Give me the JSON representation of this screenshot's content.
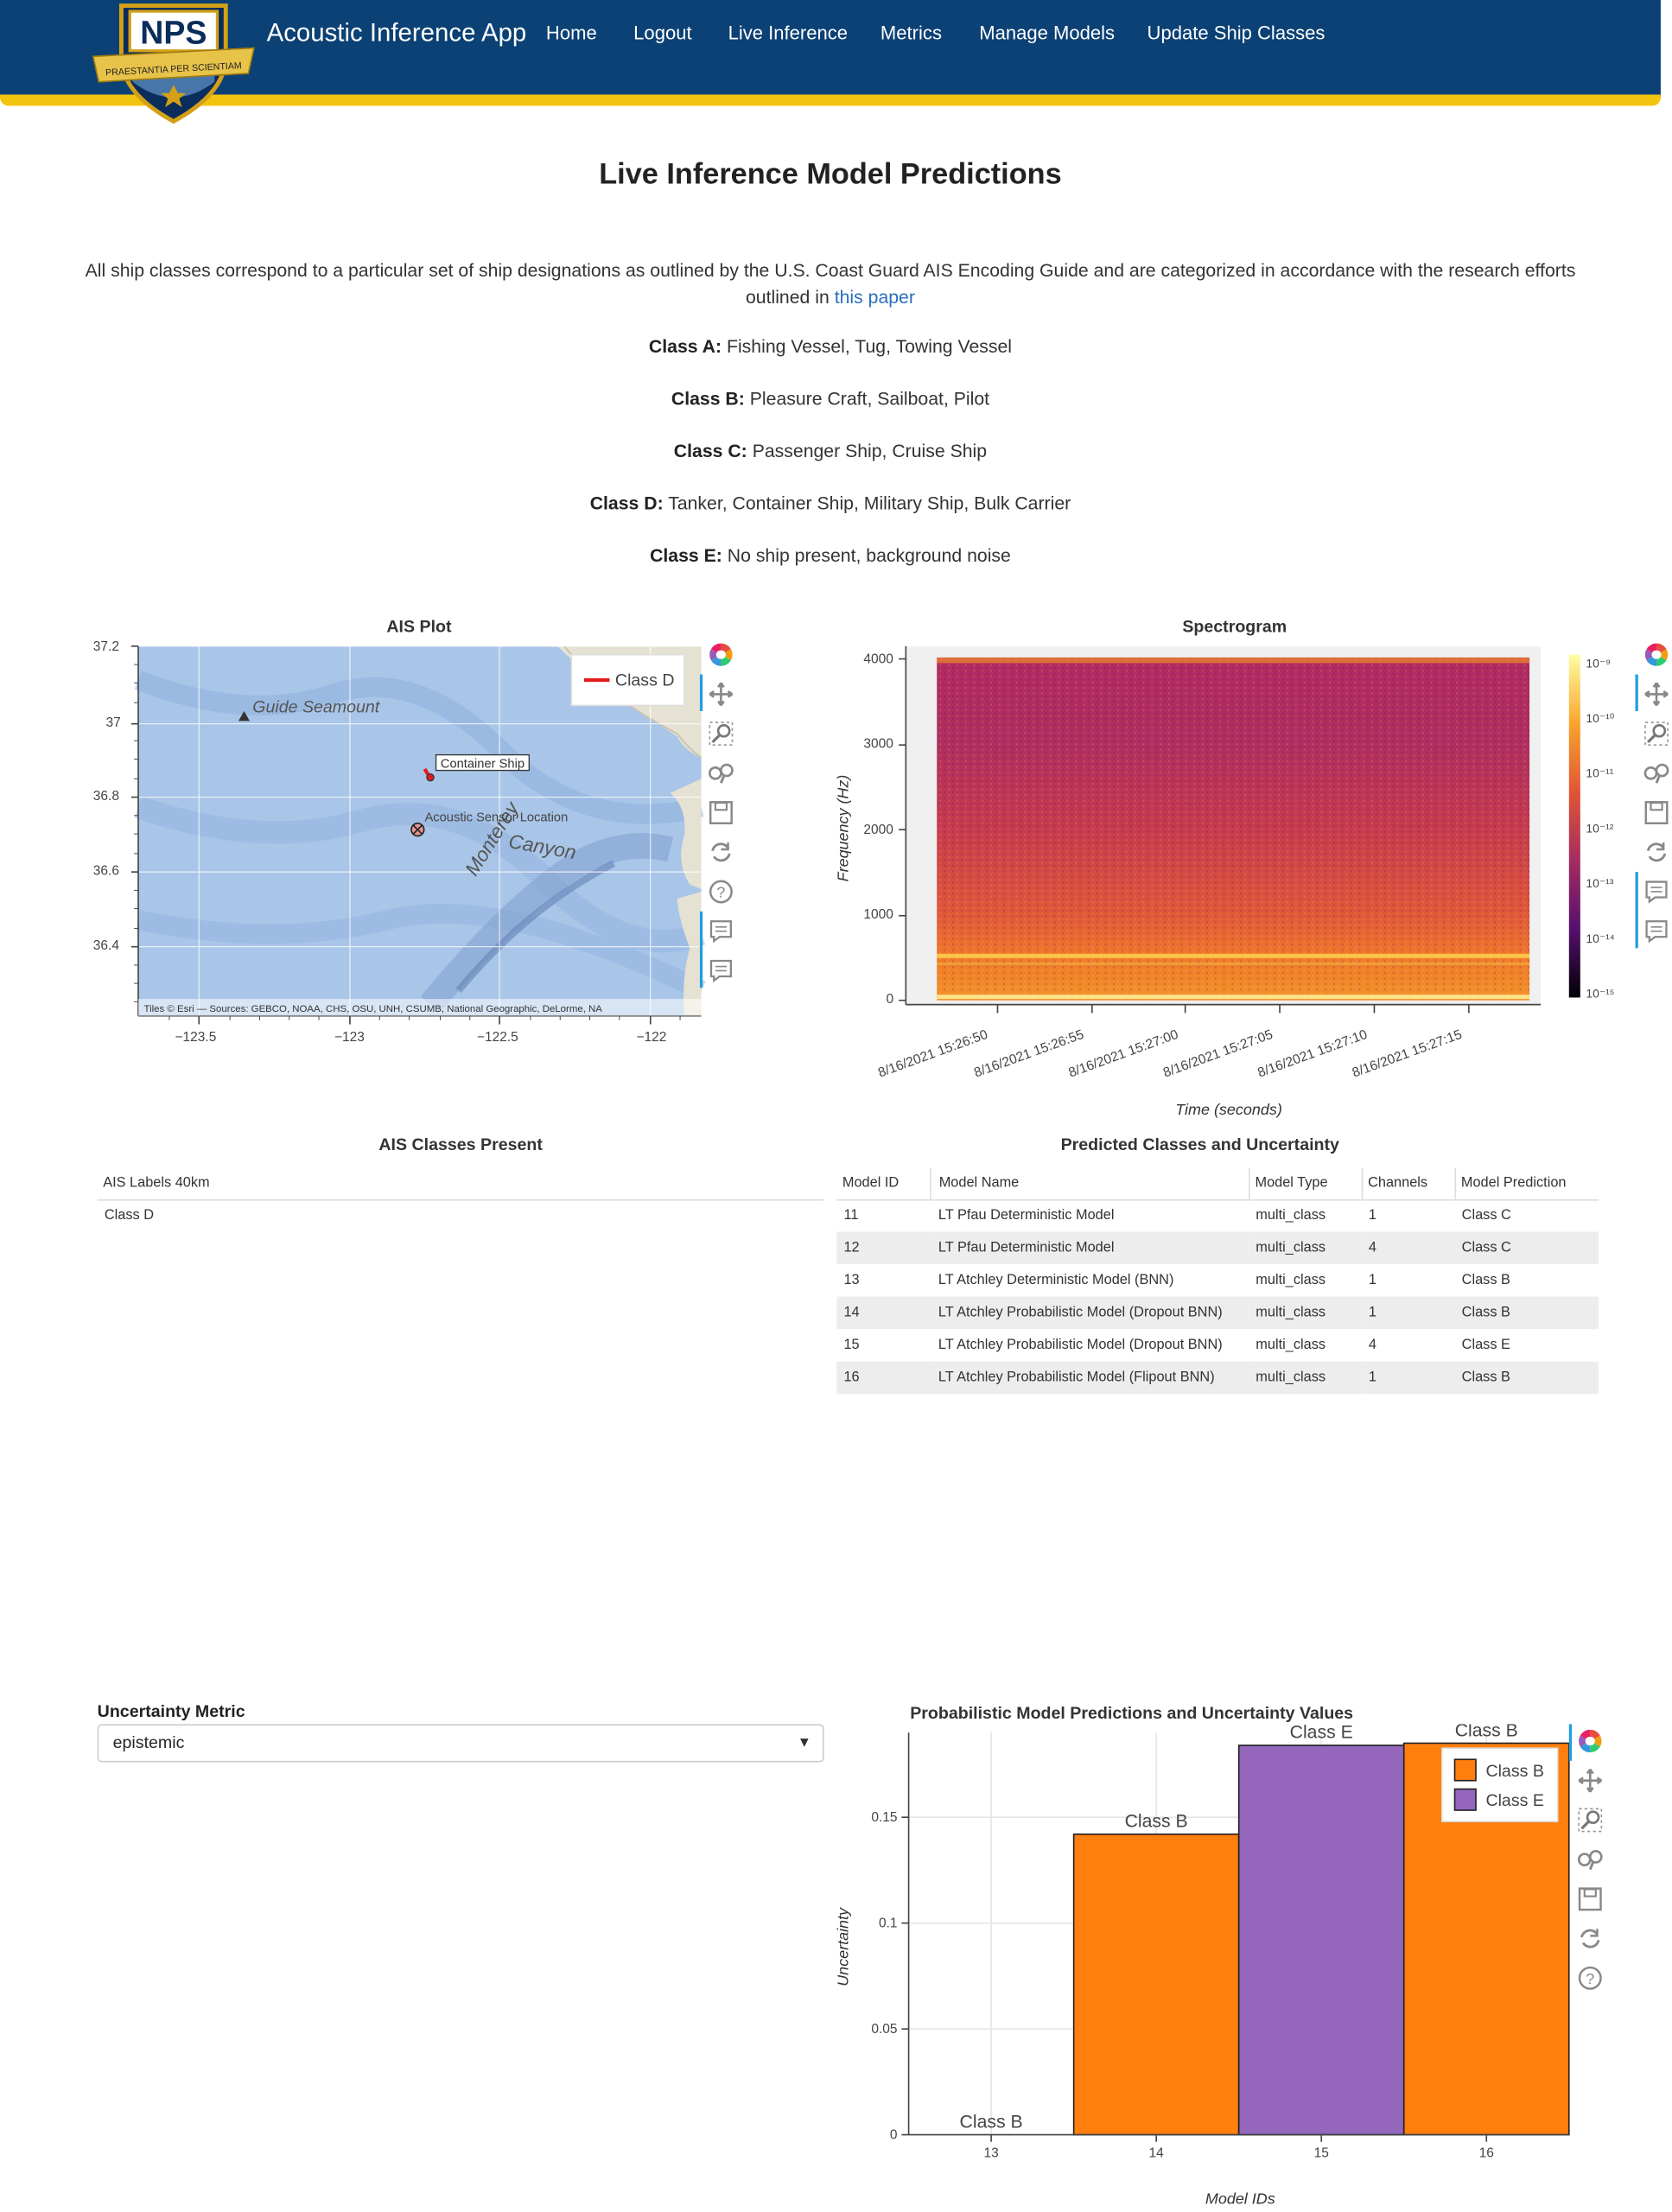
{
  "nav": {
    "logo_text": "NPS",
    "logo_motto": "PRAESTANTIA PER SCIENTIAM",
    "app_title": "Acoustic Inference App",
    "links": [
      "Home",
      "Logout",
      "Live Inference",
      "Metrics",
      "Manage Models",
      "Update Ship Classes"
    ]
  },
  "page_title": "Live Inference Model Predictions",
  "intro": {
    "text": "All ship classes correspond to a particular set of ship designations as outlined by the U.S. Coast Guard AIS Encoding Guide and are categorized in accordance with the research efforts outlined in",
    "link_text": "this paper"
  },
  "classes": [
    {
      "label": "Class A:",
      "desc": "Fishing Vessel, Tug, Towing Vessel"
    },
    {
      "label": "Class B:",
      "desc": "Pleasure Craft, Sailboat, Pilot"
    },
    {
      "label": "Class C:",
      "desc": "Passenger Ship, Cruise Ship"
    },
    {
      "label": "Class D:",
      "desc": "Tanker, Container Ship, Military Ship, Bulk Carrier"
    },
    {
      "label": "Class E:",
      "desc": "No ship present, background noise"
    }
  ],
  "ais_plot": {
    "title": "AIS Plot",
    "legend": "Class D",
    "seamount_label": "Guide Seamount",
    "canyon_label": "Monterey Canyon",
    "ship_label": "Container Ship",
    "sensor_label": "Acoustic Sensor Location",
    "attribution": "Tiles © Esri — Sources: GEBCO, NOAA, CHS, OSU, UNH, CSUMB, National Geographic, DeLorme, NA",
    "y_ticks": [
      "37.2",
      "37",
      "36.8",
      "36.6",
      "36.4"
    ],
    "x_ticks": [
      "−123.5",
      "−123",
      "−122.5",
      "−122"
    ],
    "accent": "#e31a1c"
  },
  "spectrogram": {
    "title": "Spectrogram",
    "ylabel": "Frequency (Hz)",
    "xlabel": "Time (seconds)",
    "y_ticks": [
      "4000",
      "3000",
      "2000",
      "1000",
      "0"
    ],
    "x_ticks": [
      "8/16/2021 15:26:50",
      "8/16/2021 15:26:55",
      "8/16/2021 15:27:00",
      "8/16/2021 15:27:05",
      "8/16/2021 15:27:10",
      "8/16/2021 15:27:15"
    ],
    "colorbar_ticks": [
      "10⁻⁹",
      "10⁻¹⁰",
      "10⁻¹¹",
      "10⁻¹²",
      "10⁻¹³",
      "10⁻¹⁴",
      "10⁻¹⁵"
    ]
  },
  "ais_classes": {
    "title": "AIS Classes Present",
    "header": "AIS Labels 40km",
    "rows": [
      "Class D"
    ]
  },
  "predictions": {
    "title": "Predicted Classes and Uncertainty",
    "headers": [
      "Model ID",
      "Model Name",
      "Model Type",
      "Channels",
      "Model Prediction"
    ],
    "rows": [
      [
        "11",
        "LT Pfau Deterministic Model",
        "multi_class",
        "1",
        "Class C"
      ],
      [
        "12",
        "LT Pfau Deterministic Model",
        "multi_class",
        "4",
        "Class C"
      ],
      [
        "13",
        "LT Atchley Deterministic Model (BNN)",
        "multi_class",
        "1",
        "Class B"
      ],
      [
        "14",
        "LT Atchley Probabilistic Model (Dropout BNN)",
        "multi_class",
        "1",
        "Class B"
      ],
      [
        "15",
        "LT Atchley Probabilistic Model (Dropout BNN)",
        "multi_class",
        "4",
        "Class E"
      ],
      [
        "16",
        "LT Atchley Probabilistic Model (Flipout BNN)",
        "multi_class",
        "1",
        "Class B"
      ]
    ]
  },
  "uncertainty": {
    "label": "Uncertainty Metric",
    "selected": "epistemic"
  },
  "chart_data": {
    "type": "bar",
    "title": "Probabilistic Model Predictions and Uncertainty Values",
    "xlabel": "Model IDs",
    "ylabel": "Uncertainty",
    "categories": [
      "13",
      "14",
      "15",
      "16"
    ],
    "values": [
      0.0,
      0.142,
      0.184,
      0.185
    ],
    "labels": [
      "Class B",
      "Class B",
      "Class E",
      "Class B"
    ],
    "colors": [
      "#ff7f0e",
      "#ff7f0e",
      "#9467bd",
      "#ff7f0e"
    ],
    "y_ticks": [
      "0",
      "0.05",
      "0.1",
      "0.15"
    ],
    "ylim": [
      0,
      0.19
    ],
    "legend": [
      {
        "name": "Class B",
        "color": "#ff7f0e"
      },
      {
        "name": "Class E",
        "color": "#9467bd"
      }
    ],
    "legend_position": "top-right",
    "grid": true
  }
}
